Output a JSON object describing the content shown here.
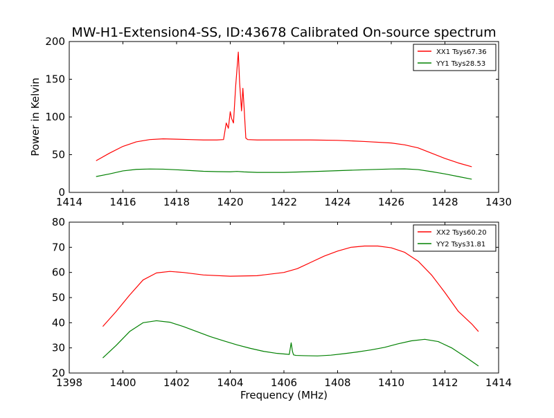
{
  "chart_data": [
    {
      "type": "line",
      "title": "MW-H1-Extension4-SS, ID:43678 Calibrated On-source spectrum",
      "xlabel": "",
      "ylabel": "Power in Kelvin",
      "xlim": [
        1414,
        1430
      ],
      "ylim": [
        0,
        200
      ],
      "xticks": [
        1414,
        1416,
        1418,
        1420,
        1422,
        1424,
        1426,
        1428,
        1430
      ],
      "yticks": [
        0,
        50,
        100,
        150,
        200
      ],
      "grid": false,
      "legend_position": "top-right",
      "series": [
        {
          "name": "XX1 Tsys67.36",
          "color": "#ff0000",
          "x": [
            1415.0,
            1415.5,
            1416.0,
            1416.5,
            1417.0,
            1417.5,
            1418.0,
            1418.5,
            1419.0,
            1419.5,
            1419.75,
            1419.85,
            1419.93,
            1420.0,
            1420.05,
            1420.12,
            1420.2,
            1420.3,
            1420.35,
            1420.42,
            1420.47,
            1420.52,
            1420.58,
            1420.65,
            1421.0,
            1422.0,
            1423.0,
            1424.0,
            1425.0,
            1426.0,
            1426.5,
            1427.0,
            1427.5,
            1428.0,
            1428.5,
            1429.0
          ],
          "y": [
            42,
            52,
            61,
            67,
            70,
            71,
            70.5,
            70,
            69.5,
            69.5,
            70,
            92,
            85,
            107,
            98,
            92,
            140,
            186,
            145,
            108,
            138,
            110,
            72,
            70,
            69.5,
            69.5,
            69.5,
            69,
            67.5,
            65.5,
            63,
            59,
            52,
            45,
            39,
            34
          ]
        },
        {
          "name": "YY1 Tsys28.53",
          "color": "#008000",
          "x": [
            1415.0,
            1415.5,
            1416.0,
            1416.5,
            1417.0,
            1417.5,
            1418.0,
            1418.5,
            1419.0,
            1419.5,
            1420.0,
            1420.25,
            1420.5,
            1421.0,
            1422.0,
            1423.0,
            1424.0,
            1425.0,
            1426.0,
            1426.5,
            1427.0,
            1427.5,
            1428.0,
            1428.5,
            1429.0
          ],
          "y": [
            21,
            24.5,
            28.5,
            30.5,
            31,
            30.8,
            30,
            29,
            28,
            27.5,
            27.3,
            27.8,
            27.2,
            26.5,
            26.5,
            27.5,
            28.8,
            30,
            31,
            31.2,
            30.2,
            27.5,
            24.5,
            21,
            17.5
          ]
        }
      ]
    },
    {
      "type": "line",
      "title": "",
      "xlabel": "Frequency (MHz)",
      "ylabel": "",
      "xlim": [
        1398,
        1414
      ],
      "ylim": [
        20,
        80
      ],
      "xticks": [
        1398,
        1400,
        1402,
        1404,
        1406,
        1408,
        1410,
        1412,
        1414
      ],
      "yticks": [
        20,
        30,
        40,
        50,
        60,
        70,
        80
      ],
      "grid": false,
      "legend_position": "top-right",
      "series": [
        {
          "name": "XX2 Tsys60.20",
          "color": "#ff0000",
          "x": [
            1399.25,
            1399.75,
            1400.25,
            1400.75,
            1401.25,
            1401.75,
            1402.25,
            1403.0,
            1404.0,
            1405.0,
            1406.0,
            1406.5,
            1407.0,
            1407.5,
            1408.0,
            1408.5,
            1409.0,
            1409.5,
            1410.0,
            1410.5,
            1411.0,
            1411.5,
            1412.0,
            1412.5,
            1413.0,
            1413.25
          ],
          "y": [
            38.5,
            44.5,
            51,
            57,
            59.8,
            60.4,
            60,
            59,
            58.5,
            58.7,
            60,
            61.5,
            64,
            66.5,
            68.5,
            70,
            70.5,
            70.5,
            69.8,
            68,
            64.5,
            59,
            52,
            44.5,
            39.5,
            36.5
          ]
        },
        {
          "name": "YY2 Tsys31.81",
          "color": "#008000",
          "x": [
            1399.25,
            1399.75,
            1400.25,
            1400.75,
            1401.25,
            1401.75,
            1402.25,
            1402.75,
            1403.25,
            1403.75,
            1404.25,
            1404.75,
            1405.25,
            1405.75,
            1406.2,
            1406.27,
            1406.32,
            1406.36,
            1406.45,
            1406.75,
            1407.25,
            1407.75,
            1408.25,
            1408.75,
            1409.25,
            1409.75,
            1410.25,
            1410.75,
            1411.25,
            1411.75,
            1412.25,
            1412.75,
            1413.25
          ],
          "y": [
            26,
            31,
            36.5,
            40,
            40.8,
            40.2,
            38.5,
            36.5,
            34.5,
            32.8,
            31.2,
            29.8,
            28.6,
            27.8,
            27.4,
            32,
            28.5,
            27.2,
            27,
            26.9,
            26.8,
            27.1,
            27.7,
            28.4,
            29.2,
            30.2,
            31.6,
            32.8,
            33.4,
            32.5,
            30,
            26.5,
            22.8
          ]
        }
      ]
    }
  ]
}
